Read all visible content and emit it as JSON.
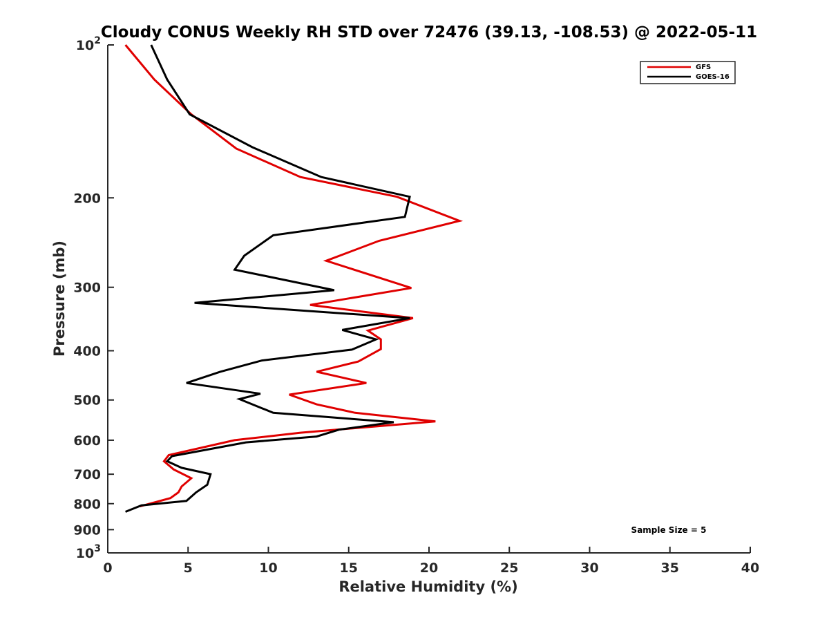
{
  "chart_data": {
    "type": "line",
    "title": "Cloudy CONUS Weekly RH STD over 72476 (39.13, -108.53) @ 2022-05-11",
    "xlabel": "Relative Humidity (%)",
    "ylabel": "Pressure (mb)",
    "xlim": [
      0,
      40
    ],
    "ylim": [
      100,
      1000
    ],
    "y_scale": "log",
    "y_reversed": true,
    "x_ticks": [
      "0",
      "5",
      "10",
      "15",
      "20",
      "25",
      "30",
      "35",
      "40"
    ],
    "y_ticks": [
      {
        "value": 100,
        "base": "10",
        "exp": "2"
      },
      {
        "value": 200,
        "label": "200"
      },
      {
        "value": 300,
        "label": "300"
      },
      {
        "value": 400,
        "label": "400"
      },
      {
        "value": 500,
        "label": "500"
      },
      {
        "value": 600,
        "label": "600"
      },
      {
        "value": 700,
        "label": "700"
      },
      {
        "value": 800,
        "label": "800"
      },
      {
        "value": 900,
        "label": "900"
      },
      {
        "value": 1000,
        "base": "10",
        "exp": "3"
      }
    ],
    "legend_position": "top-right",
    "grid": false,
    "annotation": "Sample Size = 5",
    "series": [
      {
        "name": "GFS",
        "color": "#e00000",
        "points": [
          {
            "x": 1.1,
            "y": 100
          },
          {
            "x": 2.9,
            "y": 117
          },
          {
            "x": 5.2,
            "y": 137
          },
          {
            "x": 8.0,
            "y": 160
          },
          {
            "x": 12.0,
            "y": 182
          },
          {
            "x": 18.0,
            "y": 199
          },
          {
            "x": 21.9,
            "y": 222
          },
          {
            "x": 16.9,
            "y": 243
          },
          {
            "x": 13.6,
            "y": 266
          },
          {
            "x": 18.9,
            "y": 301
          },
          {
            "x": 12.6,
            "y": 325
          },
          {
            "x": 19.0,
            "y": 345
          },
          {
            "x": 16.2,
            "y": 365
          },
          {
            "x": 17.0,
            "y": 380
          },
          {
            "x": 17.0,
            "y": 397
          },
          {
            "x": 15.6,
            "y": 420
          },
          {
            "x": 13.0,
            "y": 440
          },
          {
            "x": 16.1,
            "y": 463
          },
          {
            "x": 11.3,
            "y": 488
          },
          {
            "x": 13.0,
            "y": 510
          },
          {
            "x": 15.4,
            "y": 530
          },
          {
            "x": 20.4,
            "y": 551
          },
          {
            "x": 12.0,
            "y": 580
          },
          {
            "x": 7.9,
            "y": 600
          },
          {
            "x": 3.8,
            "y": 642
          },
          {
            "x": 3.5,
            "y": 660
          },
          {
            "x": 4.1,
            "y": 685
          },
          {
            "x": 5.2,
            "y": 713
          },
          {
            "x": 4.6,
            "y": 740
          },
          {
            "x": 4.4,
            "y": 760
          },
          {
            "x": 3.9,
            "y": 780
          },
          {
            "x": 2.0,
            "y": 810
          }
        ]
      },
      {
        "name": "GOES-16",
        "color": "#000000",
        "points": [
          {
            "x": 2.7,
            "y": 100
          },
          {
            "x": 3.7,
            "y": 117
          },
          {
            "x": 5.1,
            "y": 137
          },
          {
            "x": 9.0,
            "y": 159
          },
          {
            "x": 13.3,
            "y": 182
          },
          {
            "x": 18.8,
            "y": 199
          },
          {
            "x": 18.5,
            "y": 218
          },
          {
            "x": 10.3,
            "y": 237
          },
          {
            "x": 8.5,
            "y": 260
          },
          {
            "x": 7.9,
            "y": 277
          },
          {
            "x": 14.1,
            "y": 304
          },
          {
            "x": 5.4,
            "y": 322
          },
          {
            "x": 18.8,
            "y": 345
          },
          {
            "x": 14.6,
            "y": 364
          },
          {
            "x": 16.7,
            "y": 380
          },
          {
            "x": 15.2,
            "y": 398
          },
          {
            "x": 9.6,
            "y": 418
          },
          {
            "x": 7.0,
            "y": 440
          },
          {
            "x": 4.9,
            "y": 463
          },
          {
            "x": 9.5,
            "y": 486
          },
          {
            "x": 8.2,
            "y": 498
          },
          {
            "x": 10.3,
            "y": 530
          },
          {
            "x": 17.8,
            "y": 553
          },
          {
            "x": 14.4,
            "y": 572
          },
          {
            "x": 13.0,
            "y": 590
          },
          {
            "x": 8.6,
            "y": 606
          },
          {
            "x": 4.0,
            "y": 645
          },
          {
            "x": 3.7,
            "y": 660
          },
          {
            "x": 4.6,
            "y": 680
          },
          {
            "x": 6.4,
            "y": 700
          },
          {
            "x": 6.2,
            "y": 734
          },
          {
            "x": 5.5,
            "y": 760
          },
          {
            "x": 4.9,
            "y": 790
          },
          {
            "x": 2.1,
            "y": 806
          },
          {
            "x": 1.1,
            "y": 830
          }
        ]
      }
    ]
  }
}
